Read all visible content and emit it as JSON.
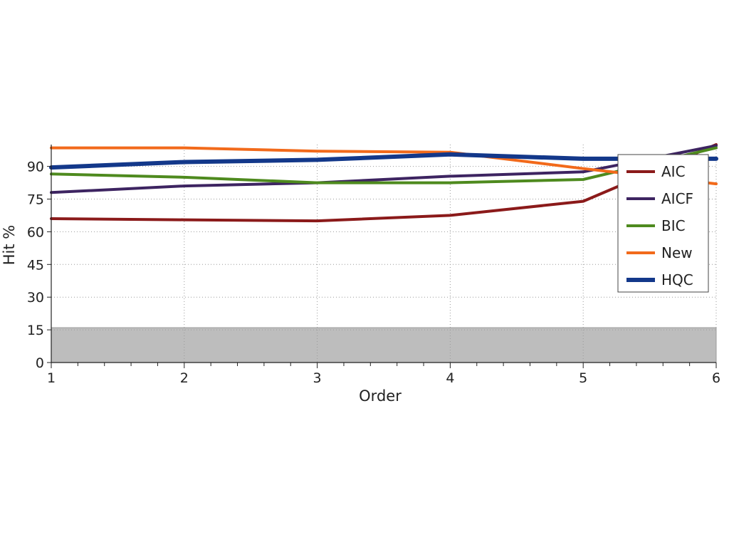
{
  "chart_data": {
    "type": "line",
    "xlabel": "Order",
    "ylabel": "Hit %",
    "x": [
      1,
      2,
      3,
      4,
      5,
      6
    ],
    "xlim": [
      1,
      6
    ],
    "ylim": [
      0,
      100
    ],
    "xticks": [
      "1",
      "2",
      "3",
      "4",
      "5",
      "6"
    ],
    "yticks": [
      "0",
      "15",
      "30",
      "45",
      "60",
      "75",
      "90"
    ],
    "grid": true,
    "legend_position": "top-right",
    "shaded_band": {
      "y_from": 0,
      "y_to": 16,
      "color": "#bdbdbd"
    },
    "series": [
      {
        "name": "AIC",
        "color": "#8b1a1a",
        "values": [
          66,
          65.5,
          65,
          67.5,
          74,
          100
        ]
      },
      {
        "name": "AICF",
        "color": "#3d2461",
        "values": [
          78,
          81,
          82.5,
          85.5,
          87.5,
          99.5
        ]
      },
      {
        "name": "BIC",
        "color": "#4e8a1e",
        "values": [
          86.5,
          85,
          82.5,
          82.5,
          84,
          98.5
        ]
      },
      {
        "name": "New",
        "color": "#f26a1b",
        "values": [
          98.5,
          98.5,
          97,
          96.5,
          89,
          82
        ]
      },
      {
        "name": "HQC",
        "color": "#13388a",
        "values": [
          89.5,
          92,
          93,
          95.5,
          93.5,
          93.5
        ]
      }
    ]
  }
}
